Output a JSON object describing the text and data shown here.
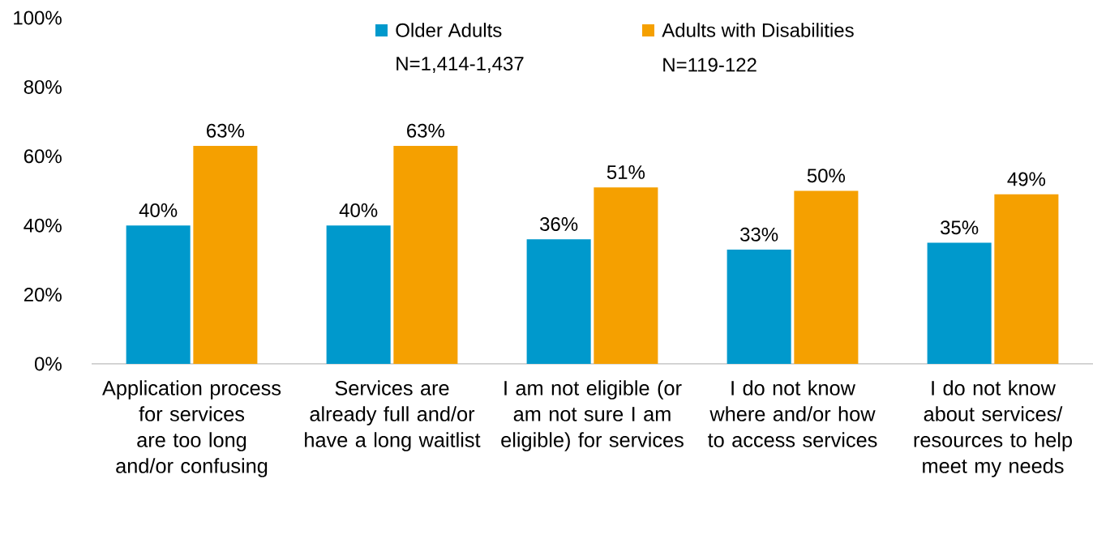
{
  "chart_data": {
    "type": "bar",
    "categories": [
      "Application process for services are too long and/or confusing",
      "Services are already full and/or have a long waitlist",
      "I am not eligible (or am not sure I am eligible) for services",
      "I do not know where and/or how to access services",
      "I do not know about services/ resources to help meet my needs"
    ],
    "series": [
      {
        "name": "Older Adults",
        "color": "#0099cc",
        "values": [
          40,
          40,
          36,
          33,
          35
        ],
        "value_labels": [
          "40%",
          "40%",
          "36%",
          "33%",
          "35%"
        ]
      },
      {
        "name": "Adults with Disabilities",
        "color": "#f5a000",
        "values": [
          63,
          63,
          51,
          50,
          49
        ],
        "value_labels": [
          "63%",
          "63%",
          "51%",
          "50%",
          "49%"
        ]
      }
    ],
    "annotations": [
      "N=1,414-1,437",
      "N=119-122"
    ],
    "ylim": [
      0,
      100
    ],
    "yticks": [
      {
        "value": 0,
        "label": "0%"
      },
      {
        "value": 20,
        "label": "20%"
      },
      {
        "value": 40,
        "label": "40%"
      },
      {
        "value": 60,
        "label": "60%"
      },
      {
        "value": 80,
        "label": "80%"
      },
      {
        "value": 100,
        "label": "100%"
      }
    ],
    "grid": false,
    "legend": "top"
  }
}
